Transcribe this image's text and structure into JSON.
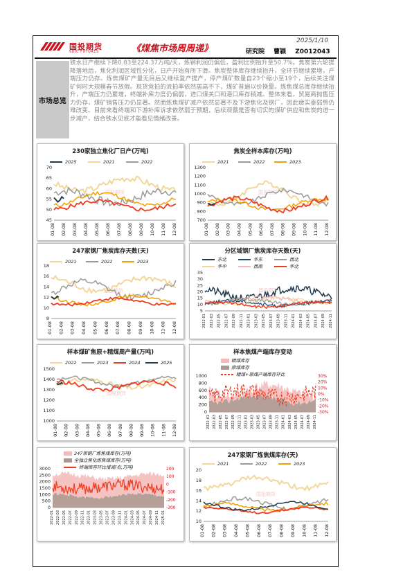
{
  "header": {
    "logo_cn": "国投期货",
    "logo_en": "SDIC FUTURES",
    "title": "《煤焦市场周周递》",
    "date": "2025/1/10",
    "author": "研究院    曹颖   Z0012043"
  },
  "summary": {
    "label": "市场总览",
    "text": "铁水日产继续下降0.83至224.37万吨/天，炼钢利润仍偏低，盈利比例抬升至50.7%。焦炭第六轮提降落地后，焦化利润区域性分化，日产开始有所下滑。焦炭整体库存继续抬升，全环节继续累增，产端压力仍存。炼焦煤矿产量无目后又继续复产提产，停产煤矿数量自23个缩小至19个，后续关注煤矿何时大规模春节放假。现货竞拍的流拍率依然居高不下，煤矿普遍以价换量。炼焦煤总库存继续抬升，产端压力仍累增，终端补库力度仍偏弱，进口煤关口和港口库存稍减。整体来看，贸易商抛售压力仍存，煤矿销售压力仍显著。然而炼焦煤矿减产依然显著不及下游焦化及钢厂，因此疲实泰弱势仍难改变。目前来看终端和下游补库诉求依然弱于预期，后续观察是否有切实的煤矿供应和焦炭的进一步减产，结合铁水见底才能看见情绪改善。"
  },
  "colors": {
    "brand": "#c8141e",
    "dark_navy": "#1f3a4d",
    "light_tan": "#f3d79a",
    "grey": "#9a9a9a",
    "orange": "#f0a000",
    "red": "#ee3b1f",
    "pink": "#f4b8b8",
    "taupe": "#a89a92",
    "navy": "#1f4e79"
  },
  "watermark": "国投期货",
  "charts": [
    {
      "title": "230家独立焦化厂日产(万吨)",
      "legend": [
        "2025",
        "2021",
        "2022"
      ],
      "yticks": [
        "45",
        "50",
        "55",
        "60",
        "65",
        "70"
      ],
      "xticks": [
        "01-08",
        "02-08",
        "03-08",
        "04-08",
        "05-08",
        "06-08",
        "07-08",
        "08-08",
        "09-08",
        "10-08",
        "11-08",
        "12-08"
      ]
    },
    {
      "title": "焦炭全样本库存(万吨)",
      "legend": [
        "2021",
        "2022",
        "2023"
      ],
      "yticks": [
        "700",
        "800",
        "900",
        "1000",
        "1100",
        "1200",
        "1300"
      ],
      "xticks": [
        "01-08",
        "02-08",
        "03-08",
        "04-08",
        "05-08",
        "06-08",
        "07-08",
        "08-08",
        "09-08",
        "10-08",
        "11-08",
        "12-08"
      ]
    },
    {
      "title": "247家钢厂焦炭库存天数(天)",
      "legend": [
        "2021",
        "2022",
        "2023"
      ],
      "yticks": [
        "8",
        "10",
        "12",
        "14",
        "16",
        "18"
      ],
      "xticks": [
        "01-08",
        "02-08",
        "03-08",
        "04-08",
        "05-08",
        "06-08",
        "07-08",
        "08-08",
        "09-08",
        "10-08",
        "11-08",
        "12-08"
      ]
    },
    {
      "title": "分区域钢厂焦炭库存天数(天)",
      "legend": [
        "东北",
        "华东",
        "西北",
        "华中",
        "西南",
        "华北"
      ],
      "yticks": [
        "5",
        "10",
        "15",
        "20",
        "25",
        "30",
        "35"
      ],
      "xticks": [
        "2022-01",
        "2022-03",
        "2022-05",
        "2022-07",
        "2022-09",
        "2022-11",
        "2023-01",
        "2023-03",
        "2023-05",
        "2023-07",
        "2023-09",
        "2023-11",
        "2024-01",
        "2024-03",
        "2024-05",
        "2024-07",
        "2024-09",
        "2024-11"
      ]
    },
    {
      "title": "样本煤矿焦原+精煤周产量(万吨)",
      "legend": [
        "2022",
        "2023",
        "2024",
        "2025"
      ],
      "yticks": [
        "1000",
        "1100",
        "1200",
        "1300",
        "1400",
        "1500"
      ],
      "xticks": [
        "01-08",
        "02-08",
        "03-08",
        "04-08",
        "05-08",
        "06-08",
        "07-08",
        "08-08",
        "09-08",
        "10-08",
        "11-08",
        "12-08"
      ]
    },
    {
      "title": "样本焦煤产端库存变动",
      "legend": [
        "精煤库存",
        "原煤库存",
        "精煤+原煤产端库存环比"
      ],
      "yticks": [
        "0",
        "200",
        "400",
        "600",
        "800",
        "1000"
      ],
      "y2ticks": [
        "30%",
        "20%",
        "10%",
        "0%",
        "-10%",
        "-20%",
        "-30%"
      ],
      "xticks": [
        "2022-01",
        "2022-03",
        "2022-05",
        "2022-07",
        "2022-09",
        "2022-11",
        "2023-01",
        "2023-03",
        "2023-05",
        "2023-07",
        "2023-09",
        "2023-11",
        "2024-01",
        "2024-03",
        "2024-05",
        "2024-07",
        "2024-09",
        "2024-11"
      ]
    },
    {
      "title": "",
      "legend": [
        "247家钢厂炼焦煤库存(万吨)",
        "全独立焦化炼焦煤库存(万吨)",
        "终端库存环比增减(右,万吨)"
      ],
      "yticks": [
        "0",
        "500",
        "1000",
        "1500",
        "2000",
        "2500",
        "3000"
      ],
      "y2ticks": [
        "200",
        "100",
        "0",
        "-100",
        "-200",
        "-300"
      ],
      "xticks": [
        "2022-01",
        "2022-03",
        "2022-05",
        "2022-07",
        "2022-09",
        "2022-11",
        "2023-01",
        "2023-03",
        "2023-05",
        "2023-07",
        "2023-09",
        "2023-11",
        "2024-01",
        "2024-03",
        "2024-05",
        "2024-07",
        "2024-09",
        "2024-11",
        "2025-01"
      ]
    },
    {
      "title": "247家钢厂炼焦煤库存(天)",
      "legend": [
        "2021",
        "2022",
        "2023"
      ],
      "yticks": [
        "10",
        "12",
        "14",
        "16",
        "18",
        "20"
      ],
      "xticks": [
        "01-08",
        "02-08",
        "03-08",
        "04-08",
        "05-08",
        "06-08",
        "07-08",
        "08-08",
        "09-08",
        "10-08",
        "11-08",
        "12-08"
      ]
    }
  ]
}
